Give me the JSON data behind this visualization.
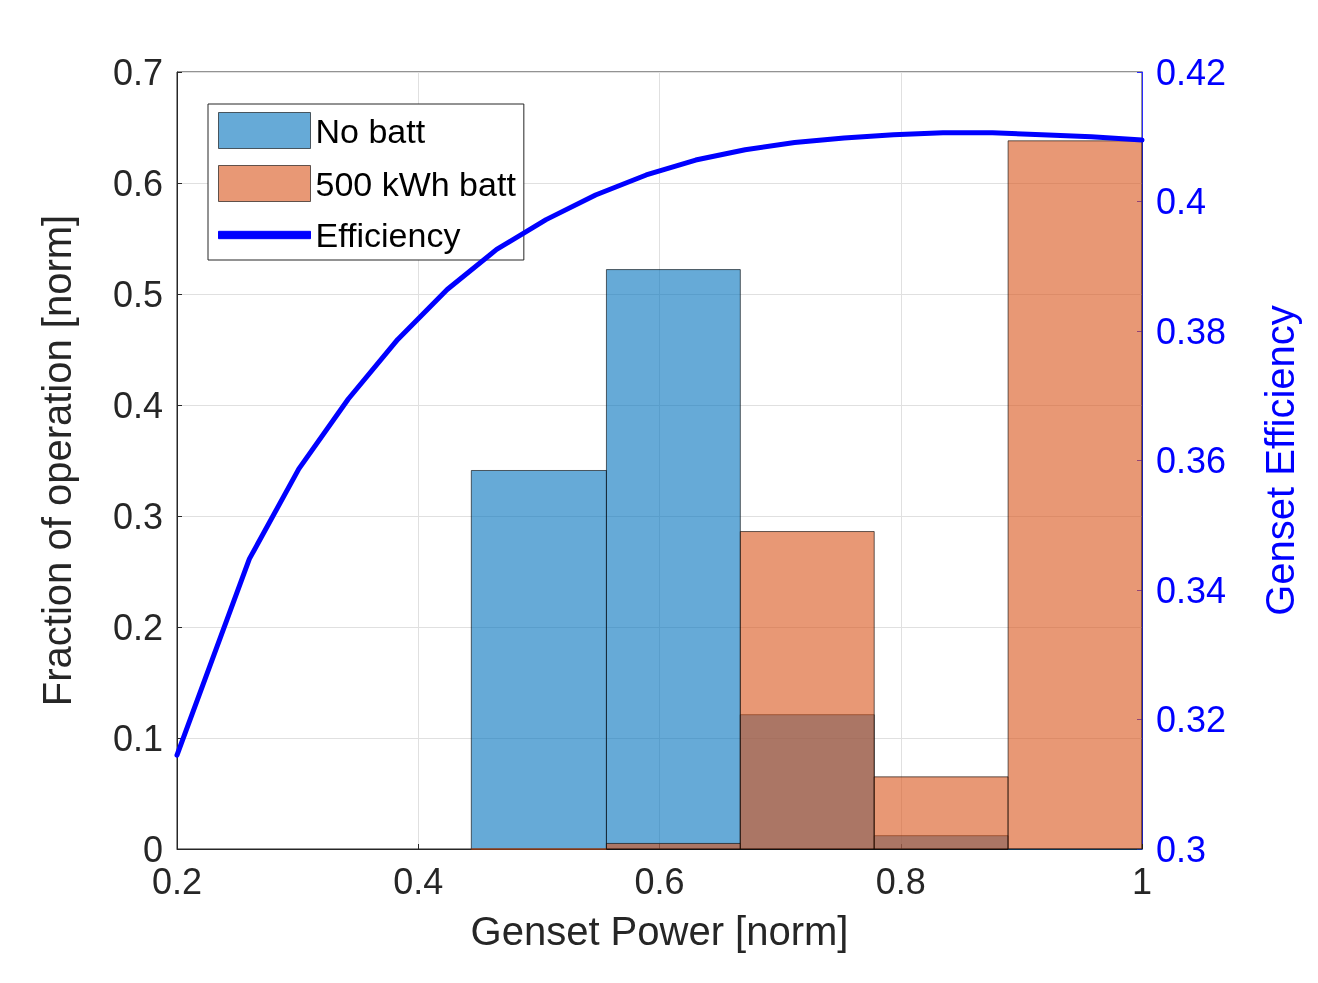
{
  "chart_data": {
    "type": "histogram",
    "xlabel": "Genset Power [norm]",
    "ylabel": "Fraction of operation [norm]",
    "y2label": "Genset Efficiency",
    "bins": [
      0.444,
      0.556,
      0.667,
      0.778,
      0.889,
      1
    ],
    "series": [
      {
        "name": "No batt",
        "color": "#0072bd",
        "values": [
          0.341,
          0.522,
          0.121,
          0.012,
          0
        ]
      },
      {
        "name": "500 kWh batt",
        "color": "#d95319",
        "values": [
          0,
          0.005,
          0.286,
          0.065,
          0.638
        ]
      },
      {
        "name": "Efficiency",
        "type": "line",
        "axis": "y2",
        "color": "#0000ff",
        "x": [
          0.2,
          0.26,
          0.301,
          0.342,
          0.383,
          0.424,
          0.465,
          0.506,
          0.547,
          0.589,
          0.63,
          0.671,
          0.712,
          0.753,
          0.794,
          0.835,
          0.876,
          0.917,
          0.958,
          1
        ],
        "values": [
          0.3145,
          0.3448,
          0.3587,
          0.3695,
          0.3787,
          0.3864,
          0.3926,
          0.3972,
          0.401,
          0.4041,
          0.4064,
          0.408,
          0.4091,
          0.4098,
          0.4103,
          0.4106,
          0.4106,
          0.4103,
          0.41,
          0.4095
        ]
      }
    ],
    "xlim": [
      0.2,
      1
    ],
    "xticks": [
      0.2,
      0.4,
      0.6,
      0.8,
      1
    ],
    "ylim": [
      0,
      0.7
    ],
    "yticks": [
      0,
      0.1,
      0.2,
      0.3,
      0.4,
      0.5,
      0.6,
      0.7
    ],
    "y2lim": [
      0.3,
      0.42
    ],
    "y2ticks": [
      0.3,
      0.32,
      0.34,
      0.36,
      0.38,
      0.4,
      0.42
    ],
    "grid": true,
    "legend": "top left",
    "marker": "none"
  }
}
